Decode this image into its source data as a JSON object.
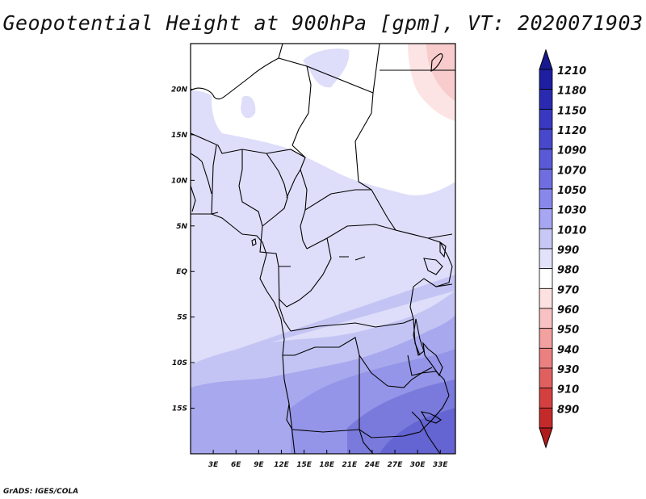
{
  "title": "Geopotential Height at 900hPa [gpm], VT: 2020071903",
  "credit": "GrADS: IGES/COLA",
  "map": {
    "lon_range": [
      0,
      35
    ],
    "lat_range": [
      -20,
      25
    ],
    "x_ticks": [
      {
        "lon": 3,
        "label": "3E"
      },
      {
        "lon": 6,
        "label": "6E"
      },
      {
        "lon": 9,
        "label": "9E"
      },
      {
        "lon": 12,
        "label": "12E"
      },
      {
        "lon": 15,
        "label": "15E"
      },
      {
        "lon": 18,
        "label": "18E"
      },
      {
        "lon": 21,
        "label": "21E"
      },
      {
        "lon": 24,
        "label": "24E"
      },
      {
        "lon": 27,
        "label": "27E"
      },
      {
        "lon": 30,
        "label": "30E"
      },
      {
        "lon": 33,
        "label": "33E"
      }
    ],
    "y_ticks": [
      {
        "lat": 20,
        "label": "20N"
      },
      {
        "lat": 15,
        "label": "15N"
      },
      {
        "lat": 10,
        "label": "10N"
      },
      {
        "lat": 5,
        "label": "5N"
      },
      {
        "lat": 0,
        "label": "EQ"
      },
      {
        "lat": -5,
        "label": "5S"
      },
      {
        "lat": -10,
        "label": "10S"
      },
      {
        "lat": -15,
        "label": "15S"
      }
    ]
  },
  "colorbar": {
    "levels": [
      {
        "label": "1210",
        "color": "#1e1ea0"
      },
      {
        "label": "1180",
        "color": "#2a2ab0"
      },
      {
        "label": "1150",
        "color": "#3838c0"
      },
      {
        "label": "1120",
        "color": "#4848cc"
      },
      {
        "label": "1090",
        "color": "#5a5ad6"
      },
      {
        "label": "1070",
        "color": "#6e6ee0"
      },
      {
        "label": "1050",
        "color": "#8888ea"
      },
      {
        "label": "1030",
        "color": "#a6a6f2"
      },
      {
        "label": "1010",
        "color": "#c8c8f6"
      },
      {
        "label": "990",
        "color": "#e2e2fb"
      },
      {
        "label": "980",
        "color": "#ffffff"
      },
      {
        "label": "970",
        "color": "#fde0e0"
      },
      {
        "label": "960",
        "color": "#f8c2c2"
      },
      {
        "label": "950",
        "color": "#f2a0a0"
      },
      {
        "label": "940",
        "color": "#ea8080"
      },
      {
        "label": "930",
        "color": "#e06060"
      },
      {
        "label": "910",
        "color": "#d44040"
      },
      {
        "label": "890",
        "color": "#c42a2a"
      }
    ],
    "top_color": "#181890",
    "bottom_color": "#b01c1c"
  }
}
